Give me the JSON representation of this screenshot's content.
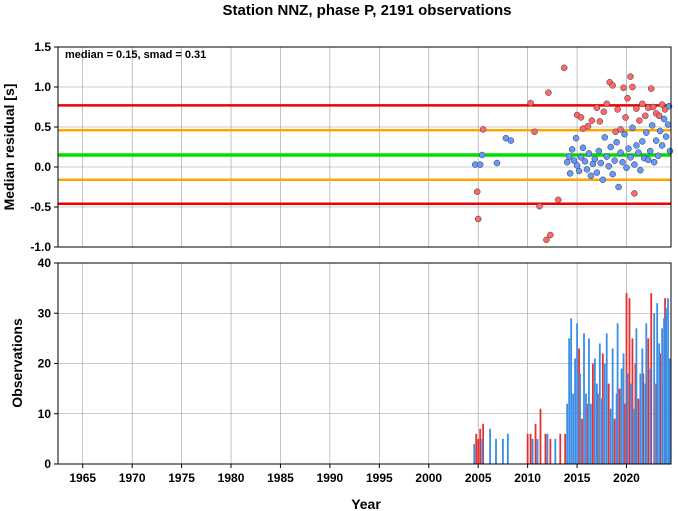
{
  "chart_data": [
    {
      "type": "scatter",
      "title": "Station NNZ, phase P, 2191 observations",
      "annotation": "median = 0.15, smad = 0.31",
      "ylabel": "Median residual [s]",
      "xlim": [
        1962.5,
        2024.5
      ],
      "ylim": [
        -1.0,
        1.5
      ],
      "yticks": [
        "-1.0",
        "-0.5",
        "0.0",
        "0.5",
        "1.0",
        "1.5"
      ],
      "yticks_values": [
        -1.0,
        -0.5,
        0.0,
        0.5,
        1.0,
        1.5
      ],
      "grid": true,
      "reference_lines": [
        {
          "y": 0.15,
          "color": "#00e000"
        },
        {
          "y": 0.46,
          "color": "#ffa500"
        },
        {
          "y": -0.16,
          "color": "#ffa500"
        },
        {
          "y": 0.77,
          "color": "#ee0000"
        },
        {
          "y": -0.46,
          "color": "#ee0000"
        }
      ],
      "series": [
        {
          "color": "#ff6666",
          "points": [
            [
              2004.9,
              -0.31
            ],
            [
              2005.0,
              -0.65
            ],
            [
              2005.5,
              0.47
            ],
            [
              2010.3,
              0.8
            ],
            [
              2010.7,
              0.44
            ],
            [
              2011.2,
              -0.49
            ],
            [
              2011.9,
              -0.91
            ],
            [
              2012.3,
              -0.85
            ],
            [
              2012.1,
              0.93
            ],
            [
              2013.1,
              -0.41
            ],
            [
              2013.7,
              1.24
            ],
            [
              2015.0,
              0.65
            ],
            [
              2015.4,
              0.62
            ],
            [
              2015.6,
              0.48
            ],
            [
              2016.1,
              0.51
            ],
            [
              2016.5,
              0.58
            ],
            [
              2017.0,
              0.74
            ],
            [
              2017.3,
              0.57
            ],
            [
              2017.7,
              0.69
            ],
            [
              2018.0,
              0.79
            ],
            [
              2018.3,
              1.06
            ],
            [
              2018.6,
              1.02
            ],
            [
              2018.9,
              0.44
            ],
            [
              2019.1,
              0.72
            ],
            [
              2019.4,
              0.47
            ],
            [
              2019.7,
              0.99
            ],
            [
              2019.9,
              0.62
            ],
            [
              2020.1,
              0.86
            ],
            [
              2020.4,
              1.13
            ],
            [
              2020.6,
              1.0
            ],
            [
              2020.8,
              -0.33
            ],
            [
              2021.0,
              0.73
            ],
            [
              2021.3,
              0.58
            ],
            [
              2021.6,
              0.79
            ],
            [
              2021.9,
              0.64
            ],
            [
              2022.2,
              0.74
            ],
            [
              2022.5,
              0.98
            ],
            [
              2022.7,
              0.75
            ],
            [
              2023.0,
              0.67
            ],
            [
              2023.3,
              0.64
            ],
            [
              2023.6,
              0.78
            ],
            [
              2023.9,
              0.72
            ]
          ]
        },
        {
          "color": "#6699ff",
          "points": [
            [
              2004.7,
              0.03
            ],
            [
              2005.2,
              0.03
            ],
            [
              2005.4,
              0.15
            ],
            [
              2006.9,
              0.05
            ],
            [
              2007.8,
              0.36
            ],
            [
              2008.3,
              0.33
            ],
            [
              2014.0,
              0.06
            ],
            [
              2014.2,
              0.13
            ],
            [
              2014.3,
              -0.08
            ],
            [
              2014.5,
              0.22
            ],
            [
              2014.7,
              0.08
            ],
            [
              2014.9,
              0.36
            ],
            [
              2015.0,
              0.02
            ],
            [
              2015.2,
              -0.05
            ],
            [
              2015.4,
              0.12
            ],
            [
              2015.6,
              0.24
            ],
            [
              2015.8,
              0.07
            ],
            [
              2016.0,
              -0.03
            ],
            [
              2016.2,
              0.17
            ],
            [
              2016.4,
              -0.11
            ],
            [
              2016.6,
              0.04
            ],
            [
              2016.8,
              0.1
            ],
            [
              2017.0,
              -0.07
            ],
            [
              2017.2,
              0.2
            ],
            [
              2017.4,
              0.05
            ],
            [
              2017.6,
              -0.16
            ],
            [
              2017.8,
              0.37
            ],
            [
              2018.0,
              0.13
            ],
            [
              2018.2,
              0.01
            ],
            [
              2018.4,
              0.25
            ],
            [
              2018.6,
              -0.09
            ],
            [
              2018.8,
              0.08
            ],
            [
              2019.0,
              0.31
            ],
            [
              2019.2,
              -0.25
            ],
            [
              2019.4,
              0.18
            ],
            [
              2019.6,
              0.06
            ],
            [
              2019.8,
              0.41
            ],
            [
              2020.0,
              -0.01
            ],
            [
              2020.2,
              0.23
            ],
            [
              2020.4,
              0.12
            ],
            [
              2020.6,
              0.49
            ],
            [
              2020.8,
              0.03
            ],
            [
              2021.0,
              0.27
            ],
            [
              2021.2,
              0.18
            ],
            [
              2021.4,
              -0.04
            ],
            [
              2021.6,
              0.32
            ],
            [
              2021.8,
              0.11
            ],
            [
              2022.0,
              0.43
            ],
            [
              2022.2,
              0.09
            ],
            [
              2022.4,
              0.2
            ],
            [
              2022.6,
              0.52
            ],
            [
              2022.8,
              0.06
            ],
            [
              2023.0,
              0.33
            ],
            [
              2023.2,
              0.14
            ],
            [
              2023.4,
              0.45
            ],
            [
              2023.6,
              0.27
            ],
            [
              2023.8,
              0.6
            ],
            [
              2024.0,
              0.38
            ],
            [
              2024.2,
              0.53
            ],
            [
              2024.3,
              0.76
            ],
            [
              2024.4,
              0.2
            ]
          ]
        }
      ]
    },
    {
      "type": "bar",
      "ylabel": "Observations",
      "xlabel": "Year",
      "xlim": [
        1962.5,
        2024.5
      ],
      "ylim": [
        0,
        40
      ],
      "xticks": [
        "1965",
        "1970",
        "1975",
        "1980",
        "1985",
        "1990",
        "1995",
        "2000",
        "2005",
        "2010",
        "2015",
        "2020"
      ],
      "xticks_values": [
        1965,
        1970,
        1975,
        1980,
        1985,
        1990,
        1995,
        2000,
        2005,
        2010,
        2015,
        2020
      ],
      "yticks": [
        "0",
        "10",
        "20",
        "30",
        "40"
      ],
      "yticks_values": [
        0,
        10,
        20,
        30,
        40
      ],
      "grid": true,
      "series": [
        {
          "color": "#e53030",
          "bars": [
            [
              2004.8,
              6
            ],
            [
              2005.0,
              5
            ],
            [
              2005.2,
              7
            ],
            [
              2005.5,
              8
            ],
            [
              2010.0,
              6
            ],
            [
              2010.3,
              6
            ],
            [
              2010.8,
              8
            ],
            [
              2011.3,
              11
            ],
            [
              2011.8,
              6
            ],
            [
              2012.3,
              5
            ],
            [
              2013.3,
              6
            ],
            [
              2013.8,
              6
            ],
            [
              2015.2,
              23
            ],
            [
              2015.5,
              9
            ],
            [
              2016.0,
              12
            ],
            [
              2016.6,
              20
            ],
            [
              2017.1,
              14
            ],
            [
              2017.6,
              22
            ],
            [
              2018.2,
              16
            ],
            [
              2018.8,
              9
            ],
            [
              2019.3,
              15
            ],
            [
              2019.8,
              12
            ],
            [
              2020.0,
              34
            ],
            [
              2020.3,
              33
            ],
            [
              2020.6,
              25
            ],
            [
              2020.9,
              20
            ],
            [
              2021.2,
              13
            ],
            [
              2021.7,
              18
            ],
            [
              2022.2,
              25
            ],
            [
              2022.5,
              34
            ],
            [
              2023.0,
              16
            ],
            [
              2023.4,
              22
            ],
            [
              2023.9,
              33
            ]
          ]
        },
        {
          "color": "#3a8ee6",
          "bars": [
            [
              2004.6,
              4
            ],
            [
              2005.4,
              5
            ],
            [
              2006.2,
              7
            ],
            [
              2006.8,
              5
            ],
            [
              2007.5,
              5
            ],
            [
              2008.0,
              6
            ],
            [
              2010.5,
              5
            ],
            [
              2011.0,
              5
            ],
            [
              2012.0,
              6
            ],
            [
              2012.8,
              5
            ],
            [
              2014.0,
              12
            ],
            [
              2014.2,
              25
            ],
            [
              2014.4,
              29
            ],
            [
              2014.6,
              14
            ],
            [
              2014.8,
              21
            ],
            [
              2015.0,
              28
            ],
            [
              2015.3,
              18
            ],
            [
              2015.7,
              26
            ],
            [
              2015.9,
              14
            ],
            [
              2016.2,
              25
            ],
            [
              2016.4,
              12
            ],
            [
              2016.8,
              21
            ],
            [
              2017.0,
              16
            ],
            [
              2017.3,
              24
            ],
            [
              2017.5,
              13
            ],
            [
              2017.8,
              20
            ],
            [
              2018.0,
              26
            ],
            [
              2018.4,
              11
            ],
            [
              2018.6,
              23
            ],
            [
              2019.0,
              14
            ],
            [
              2019.1,
              28
            ],
            [
              2019.5,
              19
            ],
            [
              2019.7,
              22
            ],
            [
              2020.1,
              18
            ],
            [
              2020.5,
              16
            ],
            [
              2020.8,
              11
            ],
            [
              2021.0,
              27
            ],
            [
              2021.4,
              18
            ],
            [
              2021.6,
              23
            ],
            [
              2021.9,
              16
            ],
            [
              2022.0,
              28
            ],
            [
              2022.4,
              19
            ],
            [
              2022.8,
              30
            ],
            [
              2023.1,
              32
            ],
            [
              2023.3,
              24
            ],
            [
              2023.6,
              27
            ],
            [
              2023.8,
              29
            ],
            [
              2024.0,
              31
            ],
            [
              2024.2,
              33
            ],
            [
              2024.4,
              21
            ]
          ]
        }
      ]
    }
  ]
}
